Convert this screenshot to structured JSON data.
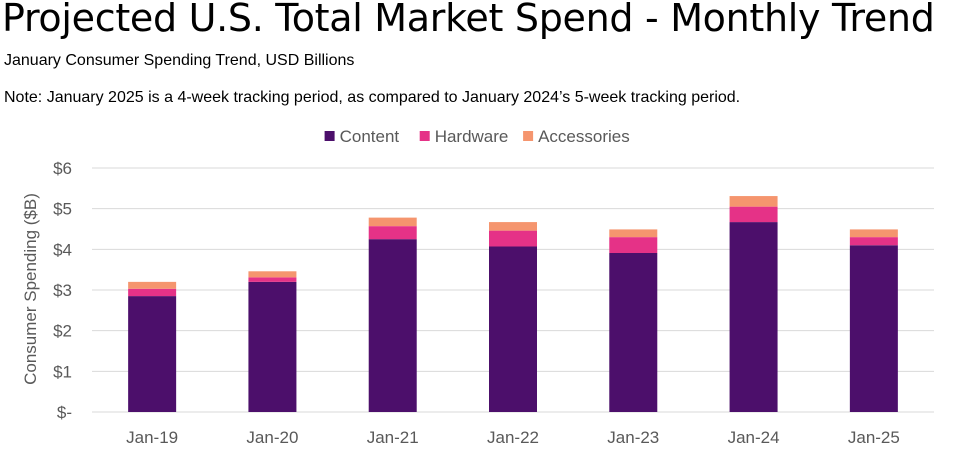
{
  "title": "Projected U.S. Total Market Spend - Monthly Trend",
  "subtitle": "January Consumer Spending Trend, USD Billions",
  "note": "Note: January 2025 is a 4-week tracking period, as compared to January 2024’s 5-week tracking period.",
  "chart_data": {
    "type": "bar",
    "stacked": true,
    "categories": [
      "Jan-19",
      "Jan-20",
      "Jan-21",
      "Jan-22",
      "Jan-23",
      "Jan-24",
      "Jan-25"
    ],
    "series": [
      {
        "name": "Content",
        "color": "#4c0f6b",
        "values": [
          2.85,
          3.2,
          4.25,
          4.07,
          3.91,
          4.67,
          4.1
        ]
      },
      {
        "name": "Hardware",
        "color": "#e53287",
        "values": [
          0.18,
          0.11,
          0.32,
          0.39,
          0.39,
          0.38,
          0.2
        ]
      },
      {
        "name": "Accessories",
        "color": "#f5956e",
        "values": [
          0.17,
          0.15,
          0.21,
          0.21,
          0.19,
          0.26,
          0.19
        ]
      }
    ],
    "ylabel": "Consumer Spending ($B)",
    "ylim": [
      0,
      6
    ],
    "yticks": [
      {
        "value": 0,
        "label": "$-"
      },
      {
        "value": 1,
        "label": "$1"
      },
      {
        "value": 2,
        "label": "$2"
      },
      {
        "value": 3,
        "label": "$3"
      },
      {
        "value": 4,
        "label": "$4"
      },
      {
        "value": 5,
        "label": "$5"
      },
      {
        "value": 6,
        "label": "$6"
      }
    ],
    "grid": true,
    "legend_position": "top-center",
    "gridline_color": "#d9d9d9"
  }
}
